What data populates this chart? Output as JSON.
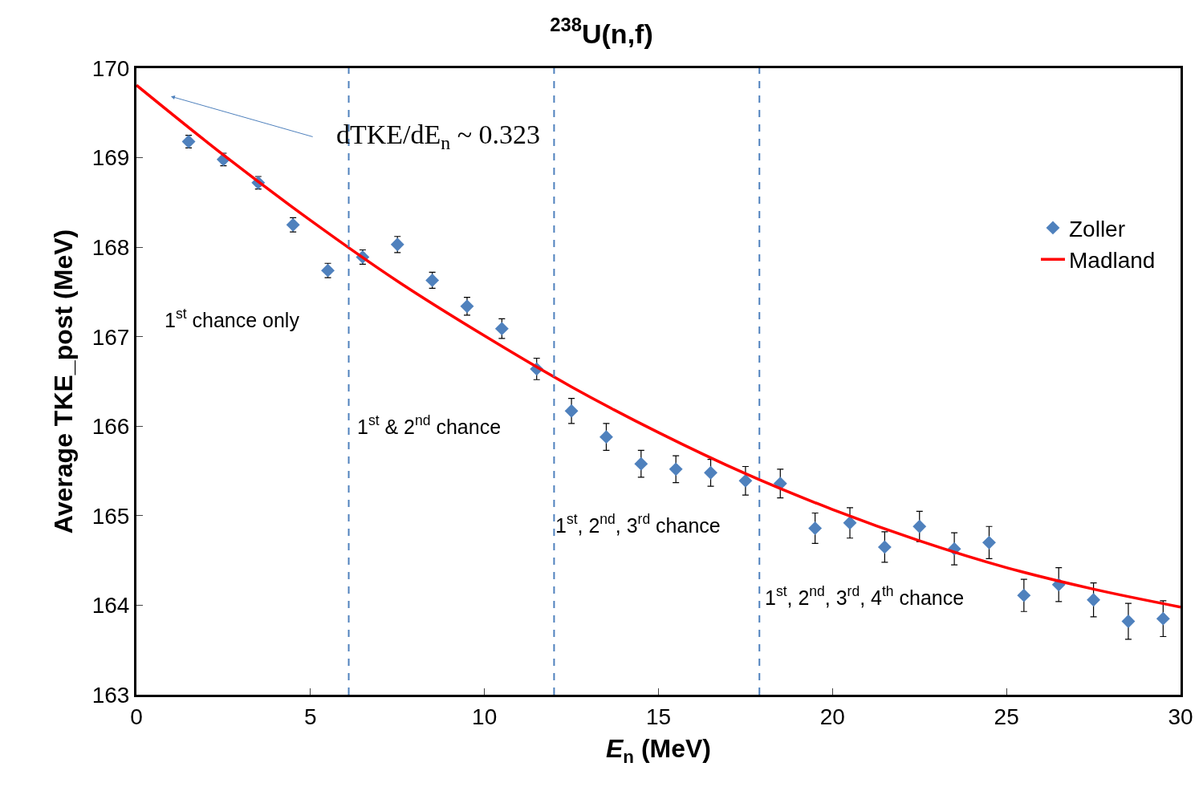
{
  "chart_data": {
    "type": "scatter",
    "title": "$^{238}$U(n,f)",
    "xlabel": "E$_{n}$ (MeV)",
    "ylabel": "Average TKE_post (MeV)",
    "xlim": [
      0,
      30
    ],
    "xticks": [
      0,
      5,
      10,
      15,
      20,
      25,
      30
    ],
    "ylim": [
      163,
      170
    ],
    "yticks": [
      163,
      164,
      165,
      166,
      167,
      168,
      169,
      170
    ],
    "legend": "right",
    "series": [
      {
        "name": "Zoller",
        "marker": "diamond",
        "color": "#4f81bd",
        "x": [
          1.5,
          2.5,
          3.5,
          4.5,
          5.5,
          6.5,
          7.5,
          8.5,
          9.5,
          10.5,
          11.5,
          12.5,
          13.5,
          14.5,
          15.5,
          16.5,
          17.5,
          18.5,
          19.5,
          20.5,
          21.5,
          22.5,
          23.5,
          24.5,
          25.5,
          26.5,
          27.5,
          28.5,
          29.5
        ],
        "values": [
          169.18,
          168.98,
          168.72,
          168.25,
          167.74,
          167.89,
          168.03,
          167.63,
          167.34,
          167.09,
          166.64,
          166.17,
          165.88,
          165.58,
          165.52,
          165.48,
          165.39,
          165.36,
          164.86,
          164.92,
          164.65,
          164.88,
          164.63,
          164.7,
          164.11,
          164.23,
          164.06,
          163.82,
          163.85
        ],
        "errors": [
          0.07,
          0.07,
          0.07,
          0.08,
          0.08,
          0.08,
          0.09,
          0.09,
          0.1,
          0.11,
          0.12,
          0.14,
          0.15,
          0.15,
          0.15,
          0.15,
          0.16,
          0.16,
          0.17,
          0.17,
          0.17,
          0.17,
          0.18,
          0.18,
          0.18,
          0.19,
          0.19,
          0.2,
          0.2
        ]
      },
      {
        "name": "Madland",
        "type": "line",
        "marker": "none",
        "line_style": "solid",
        "color": "#ff0000",
        "x": [
          0,
          2.5,
          5,
          7.5,
          10,
          12.5,
          15,
          17.5,
          20,
          22.5,
          25,
          27.5,
          30
        ],
        "values": [
          169.81,
          169.03,
          168.3,
          167.62,
          167.01,
          166.44,
          165.93,
          165.47,
          165.07,
          164.72,
          164.42,
          164.18,
          163.98
        ]
      }
    ],
    "ref_lines": [
      {
        "axis": "x",
        "value": 6.1,
        "color": "#4f81bd",
        "line_style": "dashed"
      },
      {
        "axis": "x",
        "value": 12.0,
        "color": "#4f81bd",
        "line_style": "dashed"
      },
      {
        "axis": "x",
        "value": 17.9,
        "color": "#4f81bd",
        "line_style": "dashed"
      }
    ],
    "annotations": [
      "dTKE/dE$_{n}$ ~ 0.323",
      "1$^{st}$ chance only",
      "1$^{st}$ & 2$^{nd}$ chance",
      "1$^{st}$, 2$^{nd}$, 3$^{rd}$ chance",
      "1$^{st}$, 2$^{nd}$, 3$^{rd}$, 4$^{th}$ chance"
    ]
  }
}
